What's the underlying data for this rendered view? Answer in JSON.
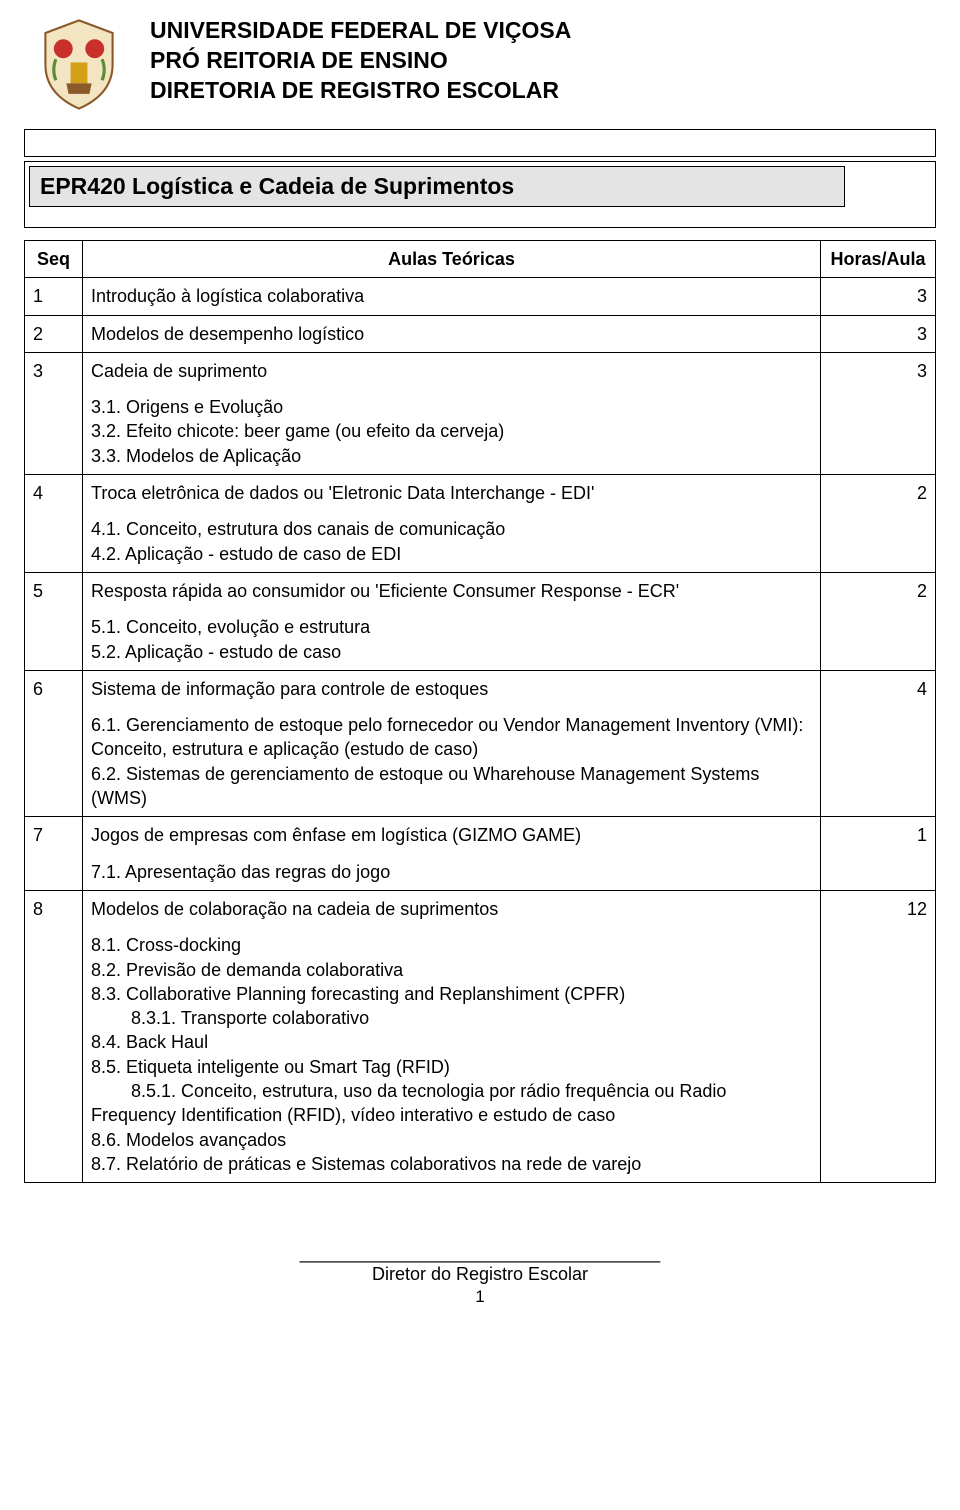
{
  "header": {
    "line1": "UNIVERSIDADE FEDERAL DE VIÇOSA",
    "line2": "PRÓ REITORIA DE ENSINO",
    "line3": "DIRETORIA DE REGISTRO ESCOLAR"
  },
  "courseTitle": "EPR420  Logística e Cadeia de Suprimentos",
  "columns": {
    "seq": "Seq",
    "topic": "Aulas Teóricas",
    "hours": "Horas/Aula"
  },
  "rows": [
    {
      "seq": "1",
      "hours": "3",
      "main": "Introdução à logística colaborativa",
      "subs": []
    },
    {
      "seq": "2",
      "hours": "3",
      "main": "Modelos de desempenho logístico",
      "subs": []
    },
    {
      "seq": "3",
      "hours": "3",
      "main": "Cadeia de suprimento",
      "subs": [
        "3.1. Origens e Evolução",
        "3.2. Efeito chicote: beer game (ou efeito da cerveja)",
        "3.3. Modelos de Aplicação"
      ]
    },
    {
      "seq": "4",
      "hours": "2",
      "main": "Troca eletrônica de dados ou 'Eletronic Data Interchange - EDI'",
      "subs": [
        "4.1. Conceito, estrutura dos canais de comunicação",
        "4.2. Aplicação - estudo de caso de EDI"
      ]
    },
    {
      "seq": "5",
      "hours": "2",
      "main": "Resposta rápida ao consumidor ou 'Eficiente Consumer Response - ECR'",
      "subs": [
        "5.1. Conceito, evolução e estrutura",
        "5.2. Aplicação - estudo de caso"
      ]
    },
    {
      "seq": "6",
      "hours": "4",
      "main": "Sistema de informação para controle de estoques",
      "subs": [
        "6.1. Gerenciamento de estoque pelo fornecedor ou Vendor Management Inventory (VMI): Conceito, estrutura e aplicação (estudo de caso)",
        "6.2. Sistemas de gerenciamento de estoque ou Wharehouse Management Systems (WMS)"
      ]
    },
    {
      "seq": "7",
      "hours": "1",
      "main": "Jogos de empresas com ênfase em logística (GIZMO GAME)",
      "subs": [
        "7.1. Apresentação das regras do jogo"
      ]
    },
    {
      "seq": "8",
      "hours": "12",
      "main": "Modelos de colaboração na cadeia de suprimentos",
      "subs": [
        "8.1. Cross-docking",
        "8.2. Previsão de demanda colaborativa",
        "8.3. Collaborative Planning forecasting and Replanshiment (CPFR)",
        "        8.3.1. Transporte colaborativo",
        "8.4. Back Haul",
        "8.5. Etiqueta inteligente ou Smart Tag (RFID)",
        "        8.5.1. Conceito, estrutura, uso da tecnologia por rádio frequência ou Radio Frequency Identification (RFID), vídeo interativo e estudo de caso",
        "8.6. Modelos avançados",
        "8.7. Relatório de práticas e Sistemas colaborativos na rede de varejo"
      ]
    }
  ],
  "footer": {
    "line": "____________________________________",
    "label": "Diretor do Registro Escolar",
    "page": "1"
  },
  "style": {
    "bgGray": "#e4e4e4",
    "border": "#000000",
    "text": "#000000",
    "titleFontSize": 23,
    "bodyFontSize": 18
  }
}
